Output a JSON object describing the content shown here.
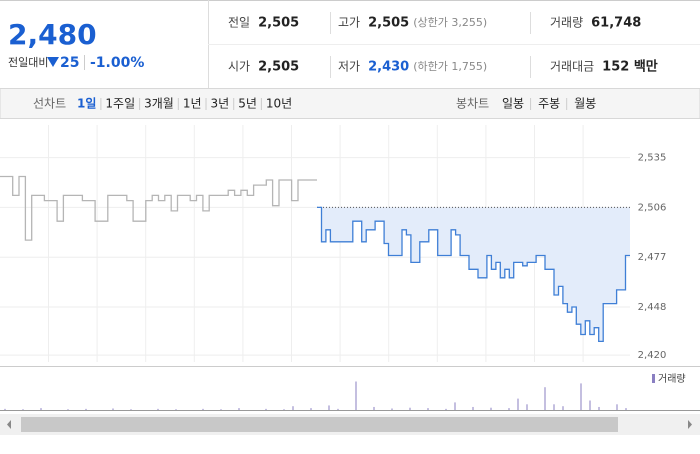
{
  "header": {
    "price": "2,480",
    "change_label": "전일대비",
    "change": "25",
    "change_pct": "-1.00%"
  },
  "stats": [
    {
      "label": "전일",
      "value": "2,505"
    },
    {
      "label": "고가",
      "value": "2,505",
      "note": "(상한가 3,255)"
    },
    {
      "label": "거래량",
      "value": "61,748"
    },
    {
      "label": "시가",
      "value": "2,505"
    },
    {
      "label": "저가",
      "value": "2,430",
      "note": "(하한가 1,755)",
      "color": "#1a5fd1"
    },
    {
      "label": "거래대금",
      "value": "152 백만"
    }
  ],
  "tabs": {
    "line_label": "선차트",
    "line_items": [
      "1일",
      "1주일",
      "3개월",
      "1년",
      "3년",
      "5년",
      "10년"
    ],
    "selected_index": 0,
    "candle_label": "봉차트",
    "candle_items": [
      "일봉",
      "주봉",
      "월봉"
    ]
  },
  "chart": {
    "type": "line",
    "ylim": [
      2416,
      2554
    ],
    "yticks": [
      {
        "value": 2535,
        "label": "2,535"
      },
      {
        "value": 2506,
        "label": "2,506"
      },
      {
        "value": 2477,
        "label": "2,477"
      },
      {
        "value": 2448,
        "label": "2,448"
      },
      {
        "value": 2420,
        "label": "2,420"
      }
    ],
    "baseline": 2506,
    "grid": true,
    "series": [
      {
        "color": "#b5b5b5",
        "values": [
          2524,
          2524,
          2513,
          2524,
          2487,
          2513,
          2513,
          2510,
          2510,
          2498,
          2513,
          2513,
          2513,
          2510,
          2510,
          2498,
          2498,
          2513,
          2513,
          2513,
          2510,
          2498,
          2498,
          2510,
          2513,
          2510,
          2513,
          2504,
          2513,
          2513,
          2510,
          2513,
          2504,
          2513,
          2513,
          2513,
          2516,
          2513,
          2516,
          2513,
          2519,
          2519,
          2522,
          2507,
          2522,
          2522,
          2510,
          2522,
          2522,
          2522
        ]
      },
      {
        "color": "#3f7fd6",
        "fill": "#e3ecfa",
        "values": [
          2506,
          2486,
          2493,
          2486,
          2486,
          2486,
          2486,
          2486,
          2498,
          2498,
          2486,
          2493,
          2493,
          2498,
          2498,
          2485,
          2478,
          2478,
          2478,
          2493,
          2490,
          2474,
          2474,
          2486,
          2486,
          2493,
          2493,
          2478,
          2478,
          2478,
          2493,
          2490,
          2478,
          2478,
          2470,
          2470,
          2465,
          2465,
          2478,
          2470,
          2474,
          2465,
          2470,
          2465,
          2474,
          2474,
          2472,
          2474,
          2474,
          2478,
          2478,
          2470,
          2470,
          2455,
          2460,
          2450,
          2445,
          2448,
          2438,
          2432,
          2440,
          2432,
          2436,
          2428,
          2450,
          2450,
          2450,
          2458,
          2458,
          2478
        ]
      }
    ],
    "volume": {
      "name": "거래량",
      "color": "#8a7fc2",
      "ylim": [
        0,
        100
      ],
      "values": [
        3,
        0,
        2,
        0,
        5,
        0,
        0,
        2,
        0,
        3,
        0,
        0,
        4,
        0,
        2,
        0,
        0,
        3,
        0,
        2,
        0,
        0,
        3,
        0,
        2,
        0,
        5,
        0,
        0,
        3,
        0,
        2,
        10,
        0,
        5,
        0,
        12,
        3,
        0,
        75,
        0,
        8,
        0,
        4,
        0,
        6,
        0,
        5,
        0,
        3,
        20,
        0,
        8,
        0,
        6,
        0,
        5,
        30,
        15,
        0,
        60,
        15,
        10,
        0,
        70,
        25,
        8,
        0,
        15,
        5
      ]
    }
  }
}
